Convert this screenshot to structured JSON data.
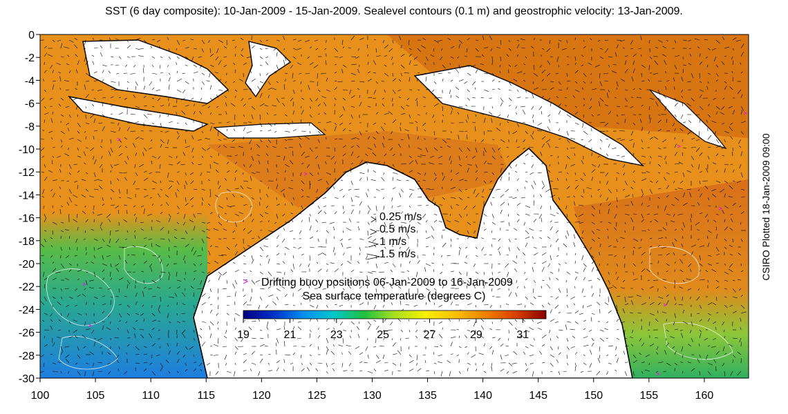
{
  "title": "SST (6 day composite): 10-Jan-2009 - 15-Jan-2009. Sealevel contours (0.1 m) and geostrophic velocity: 13-Jan-2009.",
  "credit": "CSIRO Plotted 18-Jan-2009 09:00",
  "colors": {
    "sea_warm": "#e8901c",
    "sea_warmer": "#d06a10",
    "sea_mid": "#f2b020",
    "sea_green": "#3cb84a",
    "sea_teal": "#2aa8a0",
    "sea_cool": "#1e8ce0",
    "land": "#ffffff",
    "coast": "#000000",
    "buoy": "#e020e0"
  },
  "icons": [
    "velocity-arrow-icon",
    "buoy-marker-icon"
  ],
  "axes": {
    "x": {
      "range": [
        100,
        164
      ],
      "ticks": [
        100,
        105,
        110,
        115,
        120,
        125,
        130,
        135,
        140,
        145,
        150,
        155,
        160
      ]
    },
    "y": {
      "range": [
        -30,
        0
      ],
      "ticks": [
        0,
        -2,
        -4,
        -6,
        -8,
        -10,
        -12,
        -14,
        -16,
        -18,
        -20,
        -22,
        -24,
        -26,
        -28,
        -30
      ]
    }
  },
  "velocity_legend": [
    {
      "label": "0.25 m/s",
      "speed": 0.25
    },
    {
      "label": "0.5 m/s",
      "speed": 0.5
    },
    {
      "label": "1 m/s",
      "speed": 1
    },
    {
      "label": "1.5 m/s",
      "speed": 1.5
    }
  ],
  "buoy_legend": "Drifting buoy positions 06-Jan-2009 to 16-Jan-2009",
  "colorbar": {
    "title": "Sea surface temperature (degrees C)",
    "range": [
      19,
      32
    ],
    "ticks": [
      19,
      21,
      23,
      25,
      27,
      29,
      31
    ],
    "stops": [
      "#00007f",
      "#0030c8",
      "#0090f0",
      "#00c8c8",
      "#20c040",
      "#a8e020",
      "#f8f000",
      "#f8c000",
      "#f08000",
      "#d84000",
      "#8c0000"
    ]
  }
}
